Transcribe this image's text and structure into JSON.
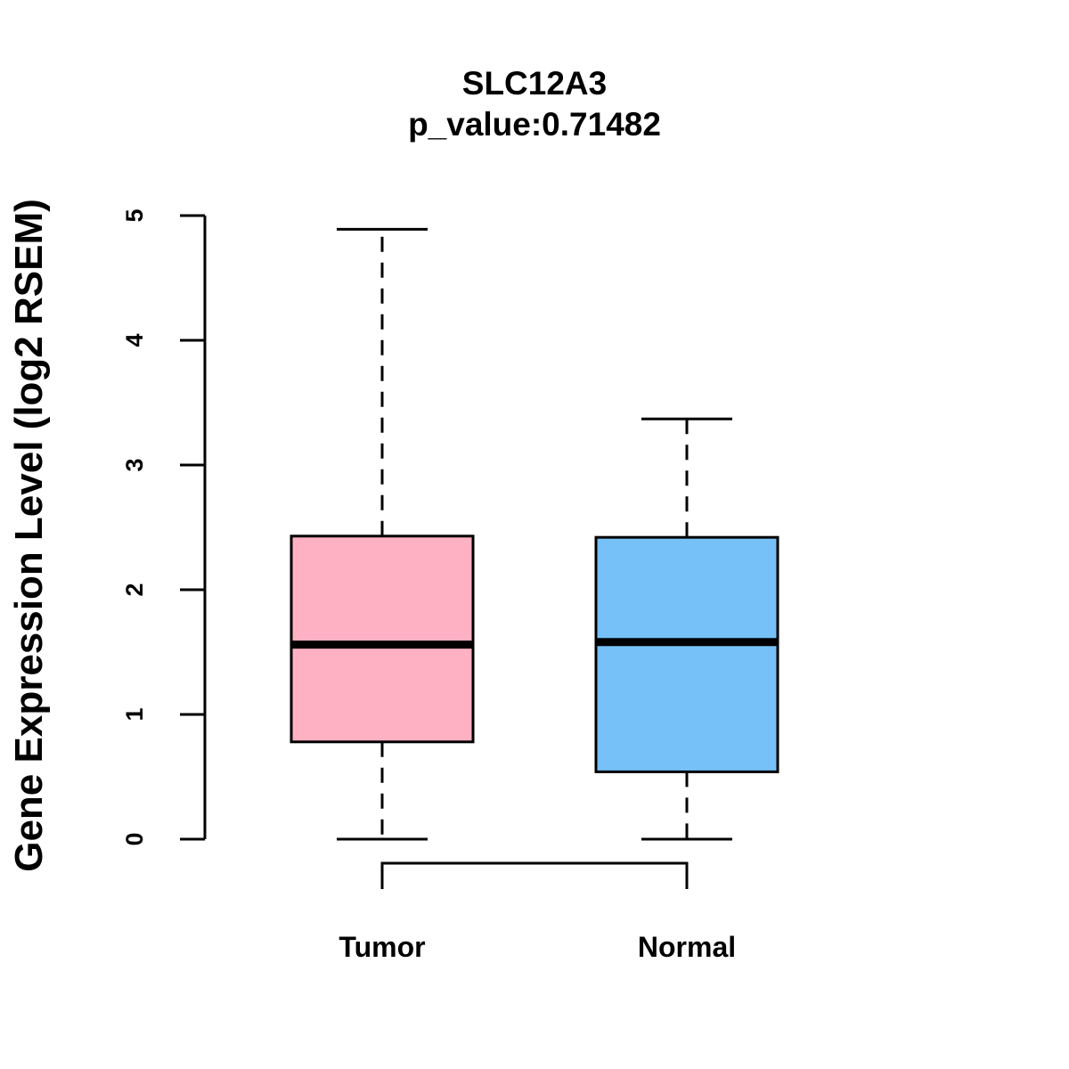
{
  "chart_data": {
    "type": "boxplot",
    "title": "SLC12A3",
    "subtitle": "p_value:0.71482",
    "ylabel": "Gene Expression Level (log2 RSEM)",
    "xlabel": "",
    "ylim": [
      0,
      5
    ],
    "yticks": [
      "0",
      "1",
      "2",
      "3",
      "4",
      "5"
    ],
    "categories": [
      "Tumor",
      "Normal"
    ],
    "series": [
      {
        "name": "Tumor",
        "min": 0,
        "q1": 0.78,
        "median": 1.56,
        "q3": 2.43,
        "max": 4.89,
        "color": "#fdb1c3"
      },
      {
        "name": "Normal",
        "min": 0,
        "q1": 0.54,
        "median": 1.58,
        "q3": 2.42,
        "max": 3.37,
        "color": "#76c1f8"
      }
    ]
  }
}
